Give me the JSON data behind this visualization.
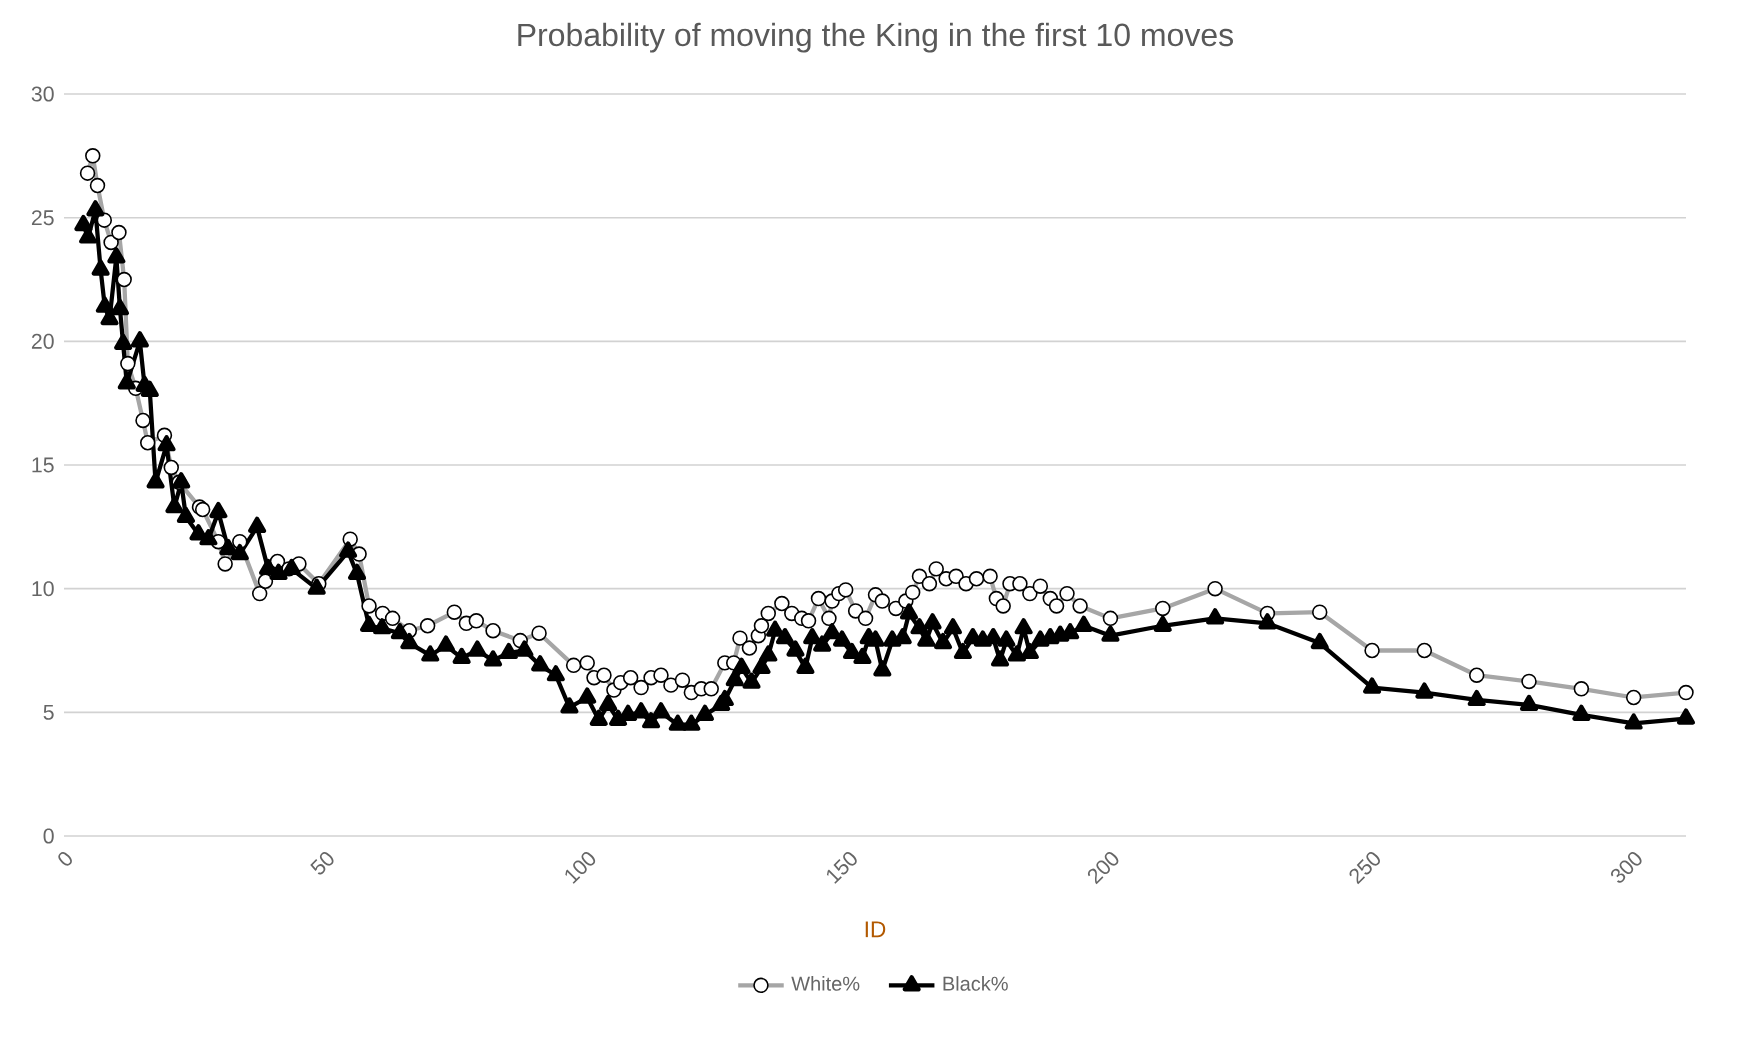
{
  "chart_data": {
    "type": "line",
    "title": "Probability of moving the King in the first 10 moves",
    "xlabel": "ID",
    "xlim": [
      0,
      310
    ],
    "ylim": [
      0,
      30
    ],
    "xticks": [
      0,
      50,
      100,
      150,
      200,
      250,
      300
    ],
    "yticks": [
      0,
      5,
      10,
      15,
      20,
      25,
      30
    ],
    "grid": "y",
    "legend": "bottom",
    "line_style": "solid",
    "series": [
      {
        "name": "White%",
        "color": "#a6a6a6",
        "marker": "circle",
        "x": [
          4.5,
          5.5,
          6.4,
          7.7,
          9,
          10.5,
          11.5,
          12.2,
          13.7,
          15.1,
          16,
          19.2,
          20.5,
          22,
          25.9,
          26.5,
          29.5,
          30.8,
          33.6,
          37.4,
          38.5,
          40.8,
          43,
          44.9,
          48.7,
          54.7,
          56.4,
          58.3,
          60.9,
          62.8,
          66,
          69.5,
          74.6,
          76.9,
          78.8,
          82,
          87.2,
          90.8,
          97.4,
          100,
          101.3,
          103.2,
          105.1,
          106.4,
          108.3,
          110.3,
          112.2,
          114.1,
          116,
          118.2,
          119.9,
          121.8,
          123.7,
          126.3,
          128,
          129.2,
          131,
          132.7,
          133.3,
          134.6,
          137.2,
          139.1,
          141,
          142.3,
          144.2,
          146.2,
          146.8,
          148.1,
          149.4,
          151.3,
          153.2,
          155.1,
          156.4,
          159,
          160.9,
          162.2,
          163.5,
          165.4,
          166.7,
          168.6,
          170.5,
          172.4,
          174.4,
          177,
          178.2,
          179.5,
          180.8,
          182.7,
          184.6,
          186.6,
          188.5,
          189.7,
          191.7,
          194.2,
          200,
          210,
          220,
          230,
          240,
          250,
          260,
          270,
          280,
          290,
          300,
          310
        ],
        "values": [
          26.8,
          27.5,
          26.3,
          24.9,
          24,
          24.4,
          22.5,
          19.1,
          18.1,
          16.8,
          15.9,
          16.2,
          14.9,
          14.3,
          13.3,
          13.2,
          11.9,
          11,
          11.9,
          9.8,
          10.3,
          11.1,
          10.8,
          11,
          10.2,
          12,
          11.4,
          9.3,
          9,
          8.8,
          8.3,
          8.5,
          9.05,
          8.6,
          8.7,
          8.3,
          7.9,
          8.2,
          6.9,
          7,
          6.4,
          6.5,
          5.9,
          6.2,
          6.4,
          6,
          6.4,
          6.5,
          6.1,
          6.3,
          5.8,
          5.95,
          5.95,
          7,
          7,
          8,
          7.6,
          8.1,
          8.5,
          9,
          9.4,
          9,
          8.8,
          8.7,
          9.6,
          8.8,
          9.5,
          9.8,
          9.95,
          9.1,
          8.8,
          9.75,
          9.5,
          9.2,
          9.5,
          9.85,
          10.5,
          10.2,
          10.8,
          10.4,
          10.5,
          10.2,
          10.4,
          10.5,
          9.6,
          9.3,
          10.2,
          10.2,
          9.8,
          10.1,
          9.6,
          9.3,
          9.8,
          9.3,
          8.8,
          9.2,
          10,
          9,
          9.05,
          7.5,
          7.5,
          6.5,
          6.25,
          5.95,
          5.6,
          5.8
        ]
      },
      {
        "name": "Black%",
        "color": "#000000",
        "marker": "triangle",
        "x": [
          3.7,
          4.6,
          6,
          7,
          7.8,
          8.7,
          10,
          10.7,
          11.3,
          12,
          14.5,
          15.4,
          16.4,
          17.5,
          19.6,
          21.1,
          22.4,
          23.3,
          25.7,
          27.6,
          29.5,
          31.4,
          33.6,
          36.9,
          39,
          41,
          43.5,
          48.3,
          54.3,
          56,
          58.3,
          60.8,
          64.2,
          66,
          70,
          73,
          76,
          79,
          82,
          85,
          88,
          91,
          94,
          96.6,
          100,
          102.2,
          104,
          105.9,
          107.8,
          110.3,
          112.2,
          114.1,
          117.3,
          119.9,
          122.5,
          125.6,
          126.3,
          128.2,
          129.5,
          131.4,
          133.3,
          134.6,
          135.9,
          137.8,
          139.8,
          141.7,
          143,
          144.9,
          146.8,
          148.7,
          150.6,
          152.6,
          153.8,
          155.1,
          156.4,
          158.3,
          160.3,
          161.5,
          163.5,
          164.8,
          166,
          168,
          169.9,
          171.8,
          173.7,
          175.6,
          177.6,
          178.9,
          180.1,
          182.1,
          183.4,
          184.6,
          186.6,
          188.5,
          190.4,
          192.3,
          194.9,
          200,
          210,
          220,
          230,
          240,
          250,
          260,
          270,
          280,
          290,
          300,
          310
        ],
        "values": [
          24.7,
          24.2,
          25.3,
          22.9,
          21.4,
          20.9,
          23.4,
          21.3,
          19.9,
          18.3,
          20,
          18.2,
          18,
          14.3,
          15.8,
          13.3,
          14.3,
          12.9,
          12.2,
          12,
          13.1,
          11.6,
          11.4,
          12.5,
          10.8,
          10.6,
          10.8,
          10,
          11.5,
          10.6,
          8.5,
          8.4,
          8.2,
          7.8,
          7.3,
          7.7,
          7.2,
          7.5,
          7.1,
          7.4,
          7.5,
          6.9,
          6.5,
          5.2,
          5.6,
          4.7,
          5.3,
          4.7,
          4.9,
          5,
          4.6,
          5,
          4.5,
          4.5,
          4.9,
          5.3,
          5.5,
          6.3,
          6.8,
          6.2,
          6.8,
          7.3,
          8.3,
          8,
          7.5,
          6.8,
          8,
          7.7,
          8.2,
          7.9,
          7.4,
          7.2,
          8,
          7.9,
          6.7,
          7.9,
          8,
          9,
          8.4,
          7.9,
          8.6,
          7.8,
          8.4,
          7.4,
          8,
          7.9,
          8,
          7.1,
          7.9,
          7.3,
          8.4,
          7.4,
          7.9,
          8,
          8.1,
          8.2,
          8.5,
          8.1,
          8.5,
          8.8,
          8.6,
          7.8,
          6,
          5.8,
          5.5,
          5.3,
          4.9,
          4.55,
          4.75
        ]
      }
    ]
  }
}
